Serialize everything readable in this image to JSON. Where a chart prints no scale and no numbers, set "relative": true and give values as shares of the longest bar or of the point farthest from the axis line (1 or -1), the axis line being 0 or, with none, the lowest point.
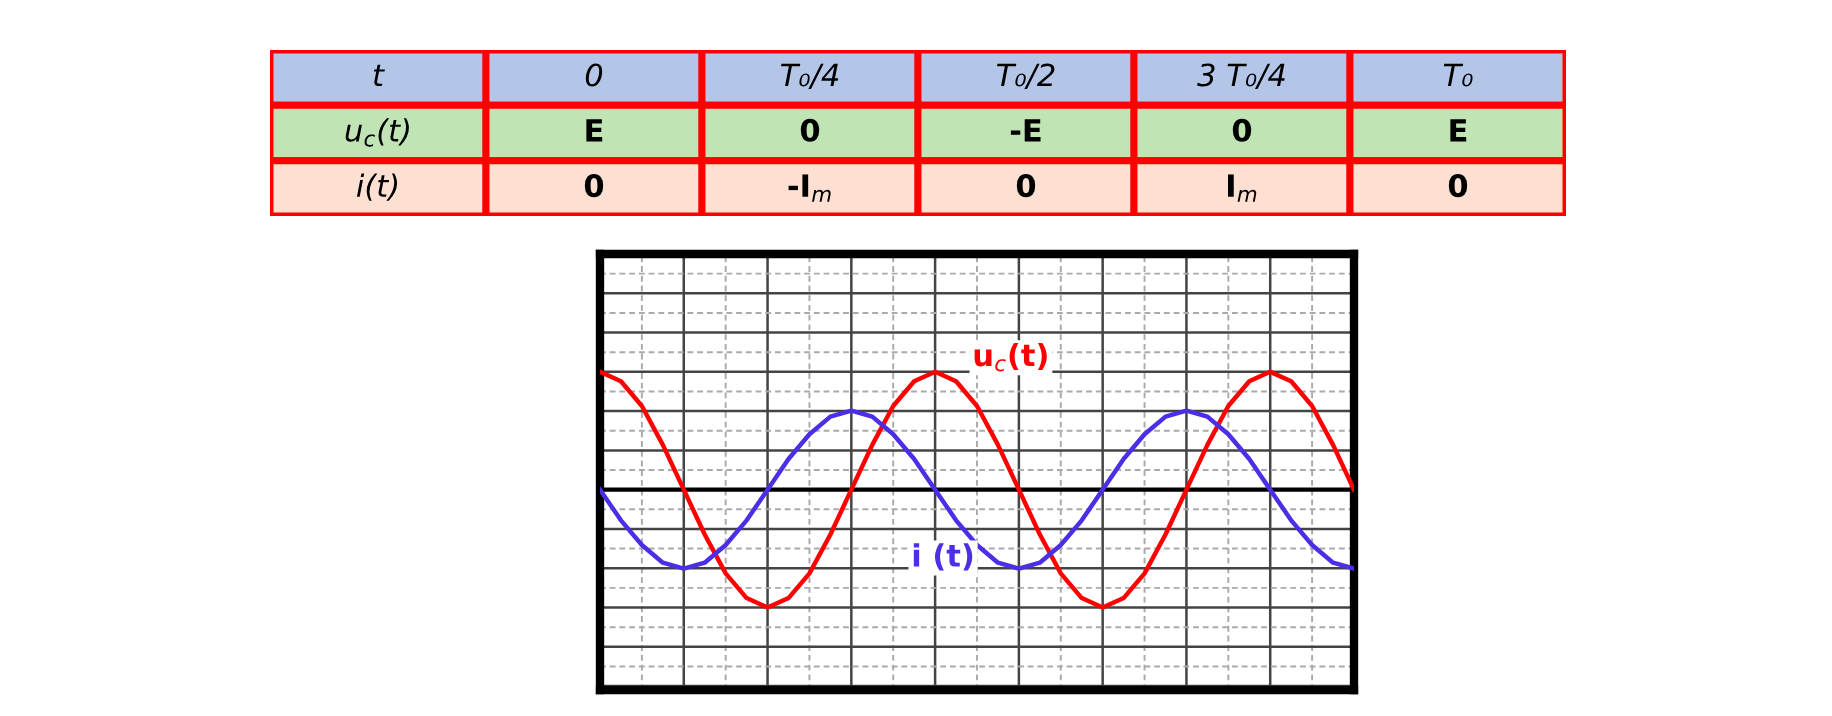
{
  "chart_data": [
    {
      "type": "other",
      "colors": [
        "#b4c6e7",
        "#c0e4b4",
        "#fde0d2"
      ],
      "annotations": [
        "t",
        "0",
        "T₀/4",
        "T₀/2",
        "3 T₀/4",
        "T₀",
        "u$_{c}$(t)",
        "E",
        "0",
        "-E",
        "0",
        "E",
        "i(t)",
        "0",
        "-I$_{m}$",
        "0",
        "I$_{m}$",
        "0"
      ]
    },
    {
      "type": "line",
      "relative": true,
      "grid": true,
      "legend": false,
      "marker": "none",
      "line_style": "solid",
      "categories": [
        null,
        null,
        null,
        null,
        null,
        null,
        null,
        null,
        null,
        null,
        null,
        null,
        null,
        null,
        null,
        null,
        null,
        null,
        null,
        null,
        null,
        null,
        null,
        null,
        null,
        null,
        null,
        null,
        null,
        null,
        null,
        null,
        null,
        null,
        null,
        null,
        null
      ],
      "series": [
        {
          "name": "u$_{c}$(t)",
          "color": "#ff0000",
          "values": [
            1,
            0.92,
            0.71,
            0.38,
            0,
            -0.38,
            -0.71,
            -0.92,
            -1,
            -0.92,
            -0.71,
            -0.38,
            0,
            0.38,
            0.71,
            0.92,
            1,
            0.92,
            0.71,
            0.38,
            0,
            -0.38,
            -0.71,
            -0.92,
            -1,
            -0.92,
            -0.71,
            -0.38,
            0,
            0.38,
            0.71,
            0.92,
            1,
            0.92,
            0.71,
            0.38,
            0
          ]
        },
        {
          "name": "i (t)",
          "color": "#4b2fe6",
          "values": [
            0,
            -0.26,
            -0.47,
            -0.62,
            -0.67,
            -0.62,
            -0.47,
            -0.26,
            0,
            0.26,
            0.47,
            0.62,
            0.67,
            0.62,
            0.47,
            0.26,
            0,
            -0.26,
            -0.47,
            -0.62,
            -0.67,
            -0.62,
            -0.47,
            -0.26,
            0,
            0.26,
            0.47,
            0.62,
            0.67,
            0.62,
            0.47,
            0.26,
            0,
            -0.26,
            -0.47,
            -0.62,
            -0.67
          ]
        }
      ]
    }
  ]
}
